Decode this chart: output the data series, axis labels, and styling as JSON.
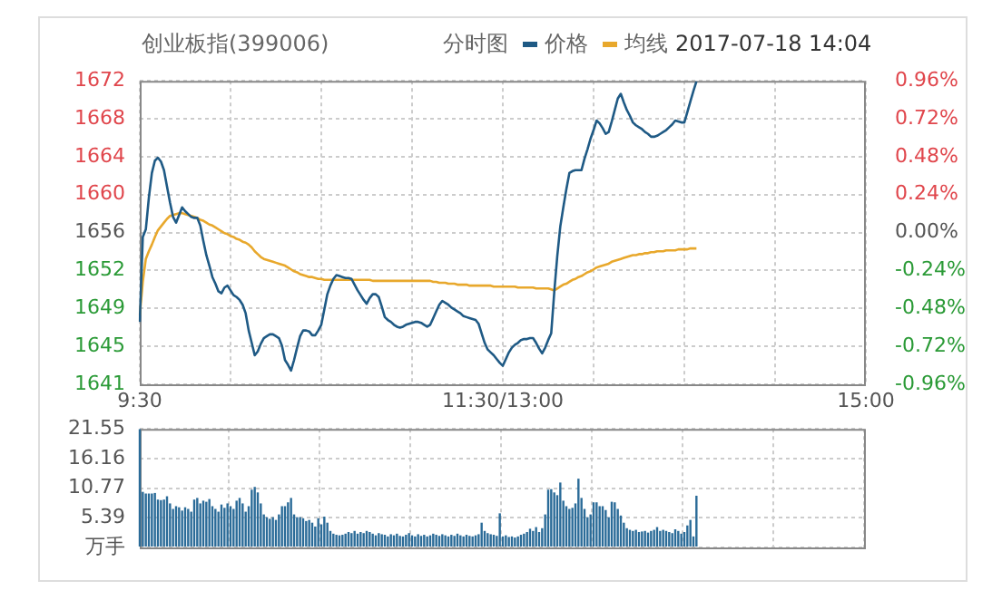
{
  "chart_data": [
    {
      "type": "line",
      "title": "创业板指(399006)",
      "subtitle": "2017-07-18 14:04",
      "legend_title": "分时图",
      "legend": "top",
      "grid": true,
      "marker": "none",
      "line_style": "solid",
      "categories": [
        "9:30",
        null,
        null,
        null,
        null,
        null,
        null,
        null,
        null,
        null,
        null,
        null,
        null,
        null,
        null,
        null,
        null,
        null,
        null,
        null,
        null,
        null,
        null,
        null,
        null,
        null,
        null,
        null,
        null,
        null,
        null,
        null,
        null,
        null,
        null,
        null,
        null,
        null,
        null,
        null,
        null,
        null,
        null,
        null,
        null,
        null,
        null,
        null,
        null,
        null,
        null,
        null,
        null,
        null,
        null,
        null,
        null,
        null,
        null,
        null,
        null,
        null,
        null,
        null,
        null,
        null,
        null,
        null,
        null,
        null,
        null,
        null,
        null,
        null,
        null,
        null,
        null,
        null,
        null,
        null,
        null,
        null,
        null,
        null,
        null,
        null,
        null,
        null,
        null,
        null,
        null,
        null,
        null,
        null,
        null,
        null,
        null,
        null,
        null,
        null,
        null,
        null,
        null,
        null,
        null,
        null,
        null,
        null,
        null,
        null,
        null,
        null,
        null,
        null,
        null,
        null,
        null,
        null,
        null,
        null,
        "11:30/13:00",
        null,
        null,
        null,
        null,
        null,
        null,
        null,
        null,
        null,
        null,
        null,
        null,
        null,
        null,
        null,
        null,
        null,
        null,
        null,
        null,
        null,
        null,
        null,
        null,
        null,
        null,
        null,
        null,
        null,
        null,
        null,
        null,
        null,
        null,
        null,
        null,
        null,
        null,
        null,
        null,
        null,
        null,
        null,
        null,
        null,
        null,
        null,
        null,
        null,
        null,
        null,
        null,
        null,
        null,
        null,
        null,
        null,
        null,
        null,
        null,
        null,
        null,
        null,
        null,
        null,
        null,
        null,
        null,
        null,
        null,
        null,
        null,
        null,
        null,
        null,
        null,
        null,
        null,
        null,
        null,
        null,
        null,
        null,
        null,
        null,
        null,
        null,
        null,
        null,
        null,
        null,
        null,
        null,
        null,
        null,
        null,
        null,
        null,
        null,
        null,
        null,
        null,
        null,
        null,
        null,
        null,
        null,
        null,
        null,
        null,
        null,
        null,
        null,
        null,
        null,
        null,
        null,
        null,
        null,
        "15:00"
      ],
      "ylim": [
        1640.56,
        1672.36
      ],
      "yticks": [
        {
          "value": 1640.56,
          "label": "1641"
        },
        {
          "value": 1644.54,
          "label": "1645"
        },
        {
          "value": 1648.51,
          "label": "1649"
        },
        {
          "value": 1652.49,
          "label": "1652"
        },
        {
          "value": 1656.46,
          "label": "1656"
        },
        {
          "value": 1660.44,
          "label": "1660"
        },
        {
          "value": 1664.41,
          "label": "1664"
        },
        {
          "value": 1668.39,
          "label": "1668"
        },
        {
          "value": 1672.36,
          "label": "1672"
        }
      ],
      "y2lim": [
        -0.96,
        0.96
      ],
      "y2ticks": [
        {
          "value": -0.96,
          "label": "-0.96%"
        },
        {
          "value": -0.72,
          "label": "-0.72%"
        },
        {
          "value": -0.48,
          "label": "-0.48%"
        },
        {
          "value": -0.24,
          "label": "-0.24%"
        },
        {
          "value": 0,
          "label": "0.00%"
        },
        {
          "value": 0.24,
          "label": "0.24%"
        },
        {
          "value": 0.48,
          "label": "0.48%"
        },
        {
          "value": 0.72,
          "label": "0.72%"
        },
        {
          "value": 0.96,
          "label": "0.96%"
        }
      ],
      "series": [
        {
          "name": "价格",
          "color": "#1f5a85",
          "values": [
            1647.1,
            1656.0,
            1656.8,
            1660.1,
            1662.7,
            1664.0,
            1664.3,
            1663.9,
            1663.0,
            1661.3,
            1659.6,
            1658.1,
            1657.5,
            1658.3,
            1659.1,
            1658.7,
            1658.4,
            1658.1,
            1658.0,
            1658.0,
            1657.2,
            1655.6,
            1654.1,
            1653.0,
            1651.8,
            1651.1,
            1650.3,
            1650.1,
            1650.7,
            1650.9,
            1650.4,
            1649.9,
            1649.7,
            1649.4,
            1648.9,
            1648.0,
            1646.2,
            1644.9,
            1643.6,
            1644.0,
            1644.8,
            1645.4,
            1645.6,
            1645.8,
            1645.8,
            1645.6,
            1645.4,
            1644.6,
            1643.1,
            1642.6,
            1642.0,
            1643.1,
            1644.4,
            1645.6,
            1646.2,
            1646.2,
            1646.1,
            1645.7,
            1645.7,
            1646.2,
            1646.8,
            1648.4,
            1650.0,
            1650.9,
            1651.6,
            1652.0,
            1651.9,
            1651.8,
            1651.7,
            1651.7,
            1651.6,
            1651.0,
            1650.4,
            1649.9,
            1649.4,
            1649.0,
            1649.6,
            1650.0,
            1650.0,
            1649.7,
            1648.7,
            1647.6,
            1647.3,
            1647.1,
            1646.8,
            1646.6,
            1646.5,
            1646.6,
            1646.8,
            1646.9,
            1647.0,
            1647.1,
            1647.1,
            1647.0,
            1646.8,
            1646.6,
            1646.8,
            1647.5,
            1648.2,
            1648.9,
            1649.3,
            1649.1,
            1648.9,
            1648.6,
            1648.4,
            1648.2,
            1648.0,
            1647.7,
            1647.6,
            1647.5,
            1647.4,
            1647.3,
            1646.9,
            1645.9,
            1644.9,
            1644.2,
            1643.9,
            1643.6,
            1643.2,
            1642.8,
            1642.5,
            1643.2,
            1643.9,
            1644.4,
            1644.7,
            1644.9,
            1645.2,
            1645.3,
            1645.3,
            1645.4,
            1645.4,
            1644.9,
            1644.3,
            1643.8,
            1644.4,
            1645.2,
            1645.9,
            1650.2,
            1654.0,
            1657.1,
            1659.1,
            1661.0,
            1662.7,
            1662.9,
            1663.0,
            1663.0,
            1663.0,
            1664.2,
            1665.2,
            1666.3,
            1667.2,
            1668.2,
            1667.9,
            1667.4,
            1666.8,
            1667.0,
            1668.1,
            1669.3,
            1670.5,
            1671.0,
            1670.1,
            1669.3,
            1668.7,
            1668.0,
            1667.7,
            1667.5,
            1667.3,
            1667.0,
            1666.8,
            1666.5,
            1666.5,
            1666.6,
            1666.8,
            1667.0,
            1667.2,
            1667.5,
            1667.8,
            1668.2,
            1668.1,
            1668.0,
            1668.0,
            1669.1,
            1670.2,
            1671.3,
            1672.3,
            null,
            null,
            null,
            null,
            null,
            null,
            null,
            null,
            null,
            null,
            null,
            null,
            null,
            null,
            null,
            null,
            null,
            null,
            null,
            null,
            null,
            null,
            null,
            null,
            null,
            null,
            null,
            null,
            null,
            null,
            null,
            null,
            null,
            null,
            null,
            null,
            null,
            null,
            null,
            null,
            null,
            null,
            null,
            null,
            null,
            null,
            null,
            null,
            null,
            null,
            null,
            null,
            null,
            null,
            null,
            null
          ]
        },
        {
          "name": "均线",
          "color": "#e8a82c",
          "values": [
            1647.8,
            1651.3,
            1653.7,
            1654.5,
            1655.2,
            1656.0,
            1656.7,
            1657.1,
            1657.5,
            1657.9,
            1658.2,
            1658.3,
            1658.4,
            1658.5,
            1658.5,
            1658.4,
            1658.3,
            1658.2,
            1658.1,
            1658.0,
            1657.8,
            1657.7,
            1657.5,
            1657.3,
            1657.2,
            1657.0,
            1656.8,
            1656.6,
            1656.4,
            1656.3,
            1656.1,
            1656.0,
            1655.8,
            1655.7,
            1655.5,
            1655.4,
            1655.2,
            1654.9,
            1654.5,
            1654.2,
            1653.9,
            1653.7,
            1653.6,
            1653.5,
            1653.4,
            1653.3,
            1653.2,
            1653.1,
            1653.0,
            1652.8,
            1652.6,
            1652.4,
            1652.3,
            1652.1,
            1652.0,
            1651.9,
            1651.8,
            1651.8,
            1651.7,
            1651.6,
            1651.6,
            1651.5,
            1651.5,
            1651.5,
            1651.5,
            1651.5,
            1651.5,
            1651.5,
            1651.5,
            1651.5,
            1651.5,
            1651.5,
            1651.5,
            1651.5,
            1651.5,
            1651.5,
            1651.5,
            1651.4,
            1651.4,
            1651.4,
            1651.4,
            1651.4,
            1651.4,
            1651.4,
            1651.4,
            1651.4,
            1651.4,
            1651.4,
            1651.4,
            1651.4,
            1651.4,
            1651.4,
            1651.4,
            1651.4,
            1651.4,
            1651.4,
            1651.4,
            1651.3,
            1651.3,
            1651.2,
            1651.2,
            1651.2,
            1651.1,
            1651.1,
            1651.1,
            1651.0,
            1651.0,
            1651.0,
            1651.0,
            1650.9,
            1650.9,
            1650.9,
            1650.9,
            1650.9,
            1650.9,
            1650.9,
            1650.9,
            1650.8,
            1650.8,
            1650.8,
            1650.8,
            1650.8,
            1650.8,
            1650.8,
            1650.8,
            1650.7,
            1650.7,
            1650.7,
            1650.7,
            1650.7,
            1650.7,
            1650.6,
            1650.6,
            1650.6,
            1650.6,
            1650.6,
            1650.5,
            1650.4,
            1650.6,
            1650.8,
            1651.0,
            1651.1,
            1651.3,
            1651.5,
            1651.6,
            1651.8,
            1651.9,
            1652.1,
            1652.3,
            1652.4,
            1652.6,
            1652.8,
            1652.9,
            1653.0,
            1653.1,
            1653.2,
            1653.4,
            1653.5,
            1653.6,
            1653.7,
            1653.8,
            1653.9,
            1654.0,
            1654.1,
            1654.1,
            1654.2,
            1654.2,
            1654.3,
            1654.3,
            1654.4,
            1654.4,
            1654.5,
            1654.5,
            1654.5,
            1654.6,
            1654.6,
            1654.6,
            1654.6,
            1654.7,
            1654.7,
            1654.7,
            1654.7,
            1654.8,
            1654.8,
            1654.8,
            null,
            null,
            null,
            null,
            null,
            null,
            null,
            null,
            null,
            null,
            null,
            null,
            null,
            null,
            null,
            null,
            null,
            null,
            null,
            null,
            null,
            null,
            null,
            null,
            null,
            null,
            null,
            null,
            null,
            null,
            null,
            null,
            null,
            null,
            null,
            null,
            null,
            null,
            null,
            null,
            null,
            null,
            null,
            null,
            null,
            null,
            null,
            null,
            null,
            null,
            null,
            null,
            null,
            null,
            null,
            null
          ]
        }
      ]
    },
    {
      "type": "bar",
      "color": "#2a6b98",
      "grid": true,
      "tick_labels": "y",
      "categories": [
        null,
        null,
        null,
        null,
        null,
        null,
        null,
        null,
        null,
        null,
        null,
        null,
        null,
        null,
        null,
        null,
        null,
        null,
        null,
        null,
        null,
        null,
        null,
        null,
        null,
        null,
        null,
        null,
        null,
        null,
        null,
        null,
        null,
        null,
        null,
        null,
        null,
        null,
        null,
        null,
        null,
        null,
        null,
        null,
        null,
        null,
        null,
        null,
        null,
        null,
        null,
        null,
        null,
        null,
        null,
        null,
        null,
        null,
        null,
        null,
        null,
        null,
        null,
        null,
        null,
        null,
        null,
        null,
        null,
        null,
        null,
        null,
        null,
        null,
        null,
        null,
        null,
        null,
        null,
        null,
        null,
        null,
        null,
        null,
        null,
        null,
        null,
        null,
        null,
        null,
        null,
        null,
        null,
        null,
        null,
        null,
        null,
        null,
        null,
        null,
        null,
        null,
        null,
        null,
        null,
        null,
        null,
        null,
        null,
        null,
        null,
        null,
        null,
        null,
        null,
        null,
        null,
        null,
        null,
        null,
        null,
        null,
        null,
        null,
        null,
        null,
        null,
        null,
        null,
        null,
        null,
        null,
        null,
        null,
        null,
        null,
        null,
        null,
        null,
        null,
        null,
        null,
        null,
        null,
        null,
        null,
        null,
        null,
        null,
        null,
        null,
        null,
        null,
        null,
        null,
        null,
        null,
        null,
        null,
        null,
        null,
        null,
        null,
        null,
        null,
        null,
        null,
        null,
        null,
        null,
        null,
        null,
        null,
        null,
        null,
        null,
        null,
        null,
        null,
        null,
        null,
        null,
        null,
        null,
        null,
        null,
        null,
        null,
        null,
        null,
        null,
        null,
        null,
        null,
        null,
        null,
        null,
        null,
        null,
        null,
        null,
        null,
        null,
        null,
        null,
        null,
        null,
        null,
        null,
        null,
        null,
        null,
        null,
        null,
        null,
        null,
        null,
        null,
        null,
        null,
        null,
        null,
        null,
        null,
        null,
        null,
        null,
        null,
        null,
        null,
        null,
        null,
        null,
        null,
        null,
        null,
        null,
        null,
        null,
        null,
        null
      ],
      "ylim": [
        0,
        21.55
      ],
      "yticks": [
        {
          "value": 0,
          "label": "万手"
        },
        5.39,
        10.77,
        16.16,
        21.55
      ],
      "values": [
        21.5,
        10.1,
        9.8,
        9.8,
        9.8,
        9.9,
        8.7,
        8.6,
        8.7,
        9.3,
        8.0,
        7.0,
        7.5,
        7.3,
        6.7,
        7.3,
        7.0,
        6.5,
        8.7,
        9.0,
        8.0,
        8.5,
        8.3,
        8.8,
        7.5,
        7.0,
        6.5,
        7.8,
        7.2,
        8.0,
        7.5,
        7.0,
        8.5,
        9.0,
        8.0,
        6.5,
        7.5,
        10.5,
        11.0,
        10.0,
        8.0,
        6.0,
        5.5,
        5.2,
        5.5,
        5.0,
        6.0,
        7.5,
        7.5,
        8.2,
        9.0,
        6.0,
        5.5,
        5.5,
        5.3,
        4.8,
        5.0,
        4.5,
        3.8,
        5.3,
        4.2,
        5.6,
        4.5,
        3.0,
        2.5,
        2.3,
        2.2,
        2.3,
        2.5,
        2.8,
        2.6,
        3.0,
        2.5,
        2.8,
        2.6,
        3.0,
        2.8,
        2.5,
        2.2,
        2.6,
        2.4,
        2.3,
        2.0,
        2.4,
        2.2,
        2.5,
        2.1,
        2.0,
        2.3,
        2.6,
        2.2,
        2.0,
        2.4,
        2.1,
        2.3,
        2.0,
        2.2,
        2.5,
        2.3,
        2.1,
        2.4,
        2.2,
        2.0,
        2.3,
        2.1,
        2.5,
        2.2,
        2.0,
        2.3,
        2.1,
        2.0,
        2.2,
        2.4,
        4.5,
        3.0,
        2.6,
        2.4,
        2.3,
        2.1,
        6.2,
        2.0,
        2.2,
        1.9,
        2.0,
        1.8,
        2.0,
        2.3,
        2.5,
        2.8,
        3.4,
        3.0,
        3.7,
        2.8,
        3.5,
        6.0,
        10.5,
        10.6,
        10.0,
        9.5,
        11.8,
        8.5,
        7.5,
        7.0,
        7.2,
        8.0,
        12.5,
        9.0,
        7.0,
        5.5,
        6.0,
        8.2,
        8.2,
        7.5,
        7.5,
        6.8,
        5.5,
        8.3,
        8.2,
        7.0,
        5.8,
        4.5,
        3.5,
        3.2,
        3.0,
        3.2,
        2.8,
        2.9,
        3.0,
        2.7,
        3.0,
        3.2,
        3.7,
        3.0,
        3.2,
        3.0,
        2.8,
        2.6,
        3.3,
        3.0,
        2.5,
        2.8,
        4.0,
        5.0,
        2.0,
        9.4,
        null,
        null,
        null,
        null,
        null,
        null,
        null,
        null,
        null,
        null,
        null,
        null,
        null,
        null,
        null,
        null,
        null,
        null,
        null,
        null,
        null,
        null,
        null,
        null,
        null,
        null,
        null,
        null,
        null,
        null,
        null,
        null,
        null,
        null,
        null,
        null,
        null,
        null,
        null,
        null,
        null,
        null,
        null,
        null,
        null,
        null,
        null,
        null,
        null,
        null,
        null,
        null,
        null,
        null,
        null,
        null
      ]
    }
  ]
}
